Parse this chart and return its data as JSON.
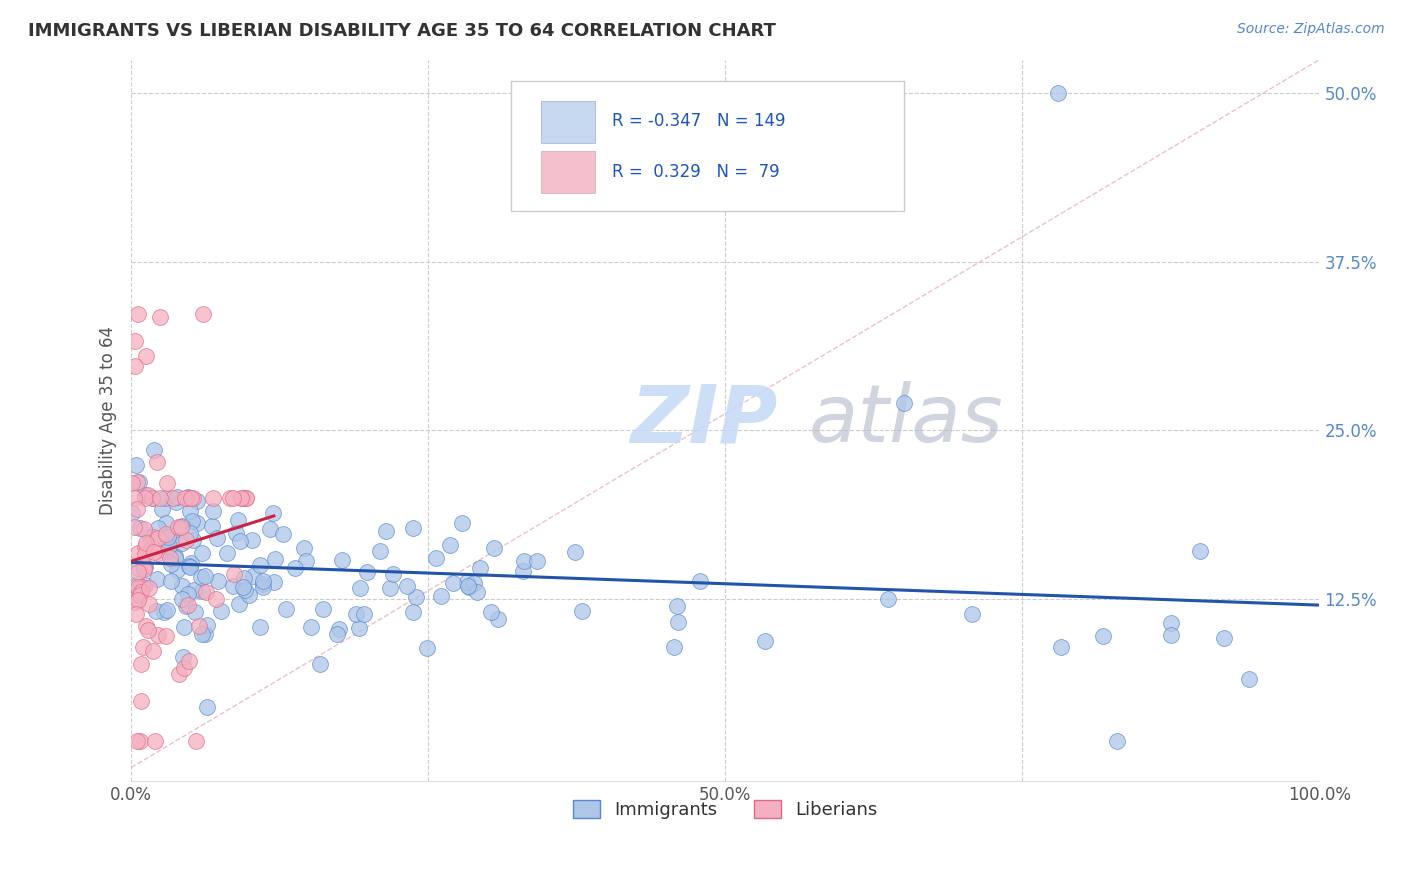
{
  "title": "IMMIGRANTS VS LIBERIAN DISABILITY AGE 35 TO 64 CORRELATION CHART",
  "source": "Source: ZipAtlas.com",
  "ylabel": "Disability Age 35 to 64",
  "xlim": [
    0,
    1.0
  ],
  "ylim": [
    -0.01,
    0.525
  ],
  "xticks": [
    0.0,
    0.25,
    0.5,
    0.75,
    1.0
  ],
  "xticklabels": [
    "0.0%",
    "",
    "50.0%",
    "",
    "100.0%"
  ],
  "yticks": [
    0.0,
    0.125,
    0.25,
    0.375,
    0.5
  ],
  "yticklabels": [
    "",
    "12.5%",
    "25.0%",
    "37.5%",
    "50.0%"
  ],
  "immigrants_color": "#aec6e8",
  "liberians_color": "#f4afc0",
  "immigrants_edge": "#5588cc",
  "liberians_edge": "#e06888",
  "trend_immigrants_color": "#2255aa",
  "trend_liberians_color": "#cc2244",
  "R_immigrants": -0.347,
  "N_immigrants": 149,
  "R_liberians": 0.329,
  "N_liberians": 79,
  "legend_box_immigrants": "#c5d8f0",
  "legend_box_liberians": "#f5c0cc",
  "background_color": "#ffffff",
  "grid_color": "#cccccc",
  "ref_line_color": "#e0b0b8",
  "title_color": "#333333",
  "source_color": "#5588cc",
  "axis_label_color": "#555555",
  "ytick_color": "#5588cc",
  "xtick_color": "#555555",
  "legend_text_color": "#2255bb"
}
